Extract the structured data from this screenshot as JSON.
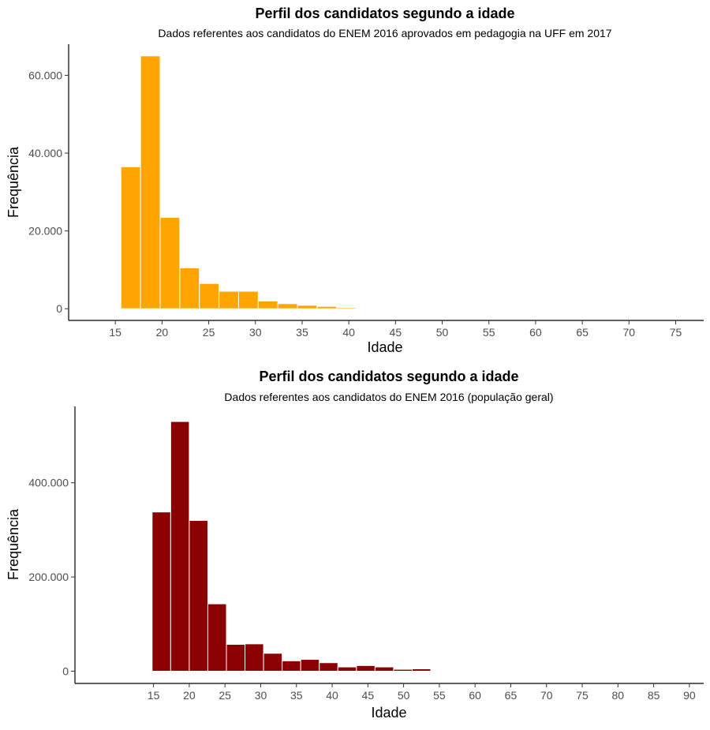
{
  "chart_data": [
    {
      "type": "bar",
      "title": "Perfil dos candidatos segundo a idade",
      "subtitle": "Dados referentes aos candidatos do ENEM 2016 aprovados em pedagogia na UFF em 2017",
      "xlabel": "Idade",
      "ylabel": "Frequência",
      "bar_color": "#FFA500",
      "xlim": [
        10,
        78
      ],
      "ylim": [
        -3000,
        68000
      ],
      "xticks": [
        15,
        20,
        25,
        30,
        35,
        40,
        45,
        50,
        55,
        60,
        65,
        70,
        75
      ],
      "xtick_labels": [
        "15",
        "20",
        "25",
        "30",
        "35",
        "40",
        "45",
        "50",
        "55",
        "60",
        "65",
        "70",
        "75"
      ],
      "yticks": [
        0,
        20000,
        40000,
        60000
      ],
      "ytick_labels": [
        "0",
        "20.000",
        "40.000",
        "60.000"
      ],
      "bin_width": 2.1,
      "bin_start": 15.6,
      "values": [
        36500,
        65000,
        23500,
        10500,
        6500,
        4500,
        4500,
        2000,
        1300,
        900,
        600,
        300,
        200,
        200,
        200
      ]
    },
    {
      "type": "bar",
      "title": "Perfil dos candidatos segundo a idade",
      "subtitle": "Dados referentes aos candidatos do ENEM 2016 (população geral)",
      "xlabel": "Idade",
      "ylabel": "Frequência",
      "bar_color": "#8B0000",
      "xlim": [
        4,
        92
      ],
      "ylim": [
        -26000,
        562000
      ],
      "xticks": [
        15,
        20,
        25,
        30,
        35,
        40,
        45,
        50,
        55,
        60,
        65,
        70,
        75,
        80,
        85,
        90
      ],
      "xtick_labels": [
        "15",
        "20",
        "25",
        "30",
        "35",
        "40",
        "45",
        "50",
        "55",
        "60",
        "65",
        "70",
        "75",
        "80",
        "85",
        "90"
      ],
      "yticks": [
        0,
        200000,
        400000
      ],
      "ytick_labels": [
        "0",
        "200.000",
        "400.000"
      ],
      "bin_width": 2.6,
      "bin_start": 14.8,
      "values": [
        338000,
        530000,
        320000,
        143000,
        57000,
        58000,
        38000,
        22000,
        25000,
        18000,
        9000,
        12000,
        9000,
        4000,
        5000,
        1500
      ]
    }
  ]
}
